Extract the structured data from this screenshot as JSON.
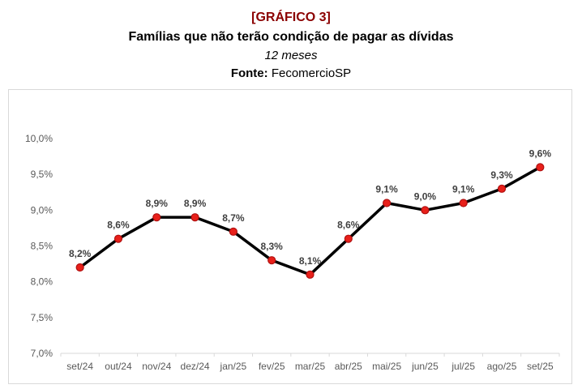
{
  "header": {
    "tag": "[GRÁFICO 3]",
    "title": "Famílias que não terão condição de pagar as dívidas",
    "subtitle": "12 meses",
    "source_label": "Fonte:",
    "source_value": "FecomercioSP"
  },
  "colors": {
    "tag": "#8b0000",
    "line": "#000000",
    "marker_fill": "#e8201a",
    "marker_stroke": "#b01010",
    "axis": "#d9d9d9",
    "tick_text": "#595959",
    "label_text": "#404040"
  },
  "chart_data": {
    "type": "line",
    "title": "Famílias que não terão condição de pagar as dívidas",
    "subtitle": "12 meses",
    "xlabel": "",
    "ylabel": "",
    "categories": [
      "set/24",
      "out/24",
      "nov/24",
      "dez/24",
      "jan/25",
      "fev/25",
      "mar/25",
      "abr/25",
      "mai/25",
      "jun/25",
      "jul/25",
      "ago/25",
      "set/25"
    ],
    "series": [
      {
        "name": "Famílias que não terão condição de pagar as dívidas",
        "values": [
          8.2,
          8.6,
          8.9,
          8.9,
          8.7,
          8.3,
          8.1,
          8.6,
          9.1,
          9.0,
          9.1,
          9.3,
          9.6
        ],
        "labels": [
          "8,2%",
          "8,6%",
          "8,9%",
          "8,9%",
          "8,7%",
          "8,3%",
          "8,1%",
          "8,6%",
          "9,1%",
          "9,0%",
          "9,1%",
          "9,3%",
          "9,6%"
        ]
      }
    ],
    "ylim": [
      7.0,
      10.0
    ],
    "yticks": [
      7.0,
      7.5,
      8.0,
      8.5,
      9.0,
      9.5,
      10.0
    ],
    "ytick_labels": [
      "7,0%",
      "7,5%",
      "8,0%",
      "8,5%",
      "9,0%",
      "9,5%",
      "10,0%"
    ],
    "grid": false,
    "legend": "none"
  }
}
